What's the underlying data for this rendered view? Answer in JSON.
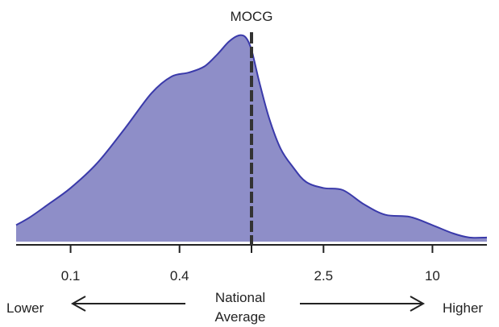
{
  "chart_data": {
    "type": "area",
    "title": "",
    "xlabel": "",
    "ylabel": "",
    "x_scale": "log",
    "xlim": [
      0.05,
      20
    ],
    "ylim": [
      0,
      1
    ],
    "grid": false,
    "legend": "none",
    "fill_color": "#8e8ec8",
    "line_color": "#3a3aaa",
    "axis_color": "#222222",
    "reference_line": {
      "value": 1,
      "label": "MOCG",
      "style": "dashed",
      "color": "#333333"
    },
    "x_ticks": [
      {
        "value": 0.1,
        "label": "0.1"
      },
      {
        "value": 0.4,
        "label": "0.4"
      },
      {
        "value": 1,
        "label": ""
      },
      {
        "value": 2.5,
        "label": "2.5"
      },
      {
        "value": 10,
        "label": "10"
      }
    ],
    "x": [
      0.05,
      0.06,
      0.075,
      0.1,
      0.14,
      0.2,
      0.28,
      0.36,
      0.45,
      0.55,
      0.65,
      0.75,
      0.85,
      0.93,
      1.0,
      1.1,
      1.25,
      1.45,
      1.7,
      2.0,
      2.5,
      3.2,
      4.2,
      5.5,
      7.5,
      10,
      13,
      16,
      20
    ],
    "density": [
      0.08,
      0.12,
      0.18,
      0.26,
      0.38,
      0.55,
      0.72,
      0.8,
      0.82,
      0.85,
      0.91,
      0.97,
      1.0,
      0.99,
      0.93,
      0.78,
      0.6,
      0.45,
      0.36,
      0.29,
      0.26,
      0.25,
      0.18,
      0.13,
      0.12,
      0.08,
      0.04,
      0.02,
      0.02
    ]
  },
  "annotations": {
    "lower": "Lower",
    "higher": "Higher",
    "center_line1": "National",
    "center_line2": "Average"
  }
}
